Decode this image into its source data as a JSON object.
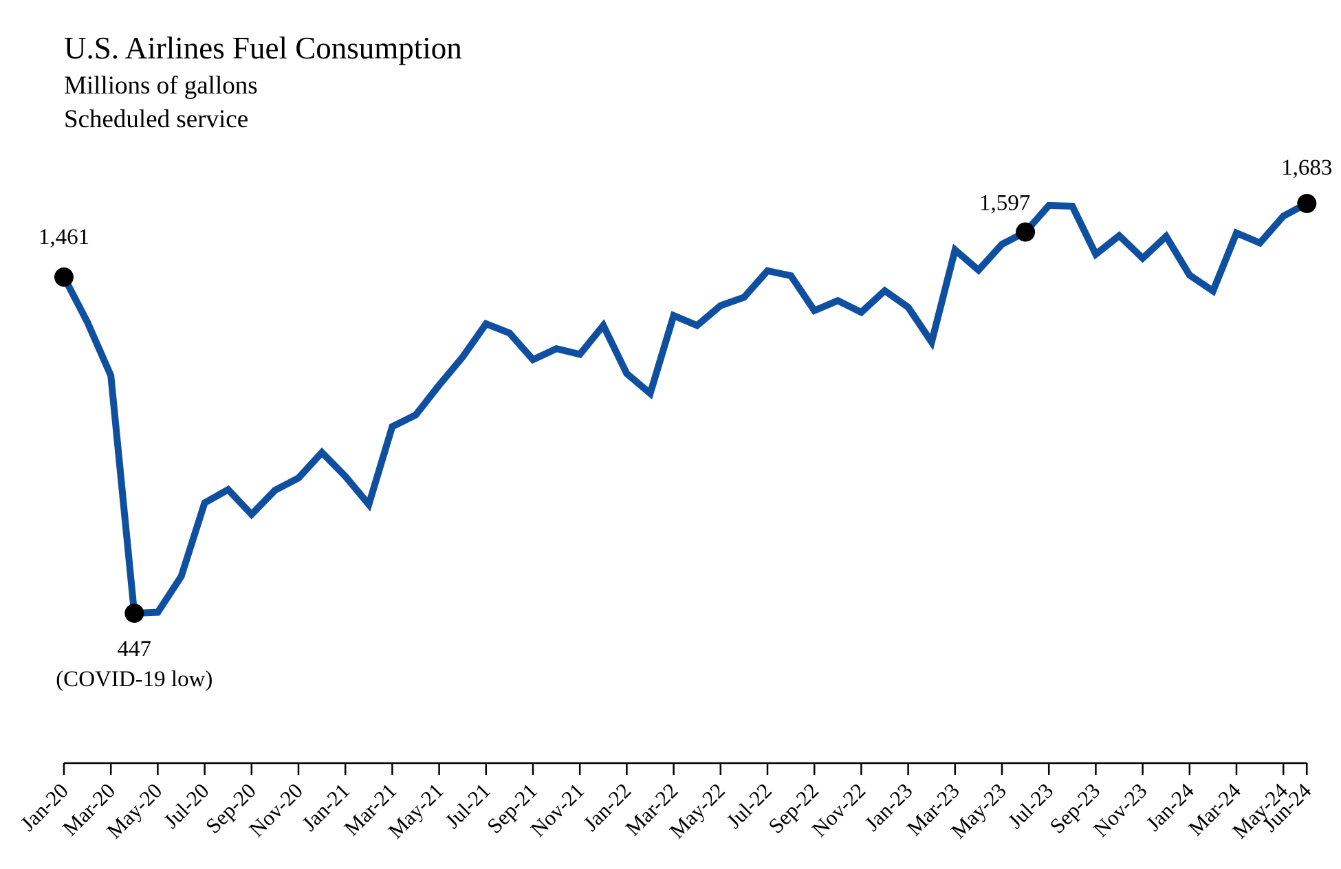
{
  "chart_data": {
    "type": "line",
    "title": "U.S. Airlines Fuel Consumption",
    "subtitle_lines": [
      "Millions of gallons",
      "Scheduled service"
    ],
    "line_color": "#0f4fa0",
    "marker_color": "#000000",
    "x": [
      "Jan-20",
      "Feb-20",
      "Mar-20",
      "Apr-20",
      "May-20",
      "Jun-20",
      "Jul-20",
      "Aug-20",
      "Sep-20",
      "Oct-20",
      "Nov-20",
      "Dec-20",
      "Jan-21",
      "Feb-21",
      "Mar-21",
      "Apr-21",
      "May-21",
      "Jun-21",
      "Jul-21",
      "Aug-21",
      "Sep-21",
      "Oct-21",
      "Nov-21",
      "Dec-21",
      "Jan-22",
      "Feb-22",
      "Mar-22",
      "Apr-22",
      "May-22",
      "Jun-22",
      "Jul-22",
      "Aug-22",
      "Sep-22",
      "Oct-22",
      "Nov-22",
      "Dec-22",
      "Jan-23",
      "Feb-23",
      "Mar-23",
      "Apr-23",
      "May-23",
      "Jun-23",
      "Jul-23",
      "Aug-23",
      "Sep-23",
      "Oct-23",
      "Nov-23",
      "Dec-23",
      "Jan-24",
      "Feb-24",
      "Mar-24",
      "Apr-24",
      "May-24",
      "Jun-24"
    ],
    "series": [
      {
        "values": [
          1461,
          1325,
          1164,
          447,
          450,
          558,
          780,
          820,
          745,
          818,
          855,
          932,
          860,
          775,
          1010,
          1045,
          1135,
          1220,
          1320,
          1292,
          1212,
          1245,
          1228,
          1315,
          1170,
          1110,
          1345,
          1315,
          1375,
          1400,
          1480,
          1465,
          1360,
          1390,
          1355,
          1420,
          1370,
          1265,
          1543,
          1482,
          1560,
          1597,
          1677,
          1675,
          1530,
          1586,
          1518,
          1584,
          1467,
          1419,
          1594,
          1564,
          1645,
          1683
        ]
      }
    ],
    "x_tick_labels": [
      "Jan-20",
      "Mar-20",
      "May-20",
      "Jul-20",
      "Sep-20",
      "Nov-20",
      "Jan-21",
      "Mar-21",
      "May-21",
      "Jul-21",
      "Sep-21",
      "Nov-21",
      "Jan-22",
      "Mar-22",
      "May-22",
      "Jul-22",
      "Sep-22",
      "Nov-22",
      "Jan-23",
      "Mar-23",
      "May-23",
      "Jul-23",
      "Sep-23",
      "Nov-23",
      "Jan-24",
      "Mar-24",
      "May-24",
      "Jun-24"
    ],
    "annotations": [
      {
        "x": "Jan-20",
        "value": 1461,
        "lines": [
          "1,461"
        ]
      },
      {
        "x": "Apr-20",
        "value": 447,
        "lines": [
          "447",
          "(COVID-19 low)"
        ]
      },
      {
        "x": "Jun-23",
        "value": 1597,
        "lines": [
          "1,597"
        ]
      },
      {
        "x": "Jun-24",
        "value": 1683,
        "lines": [
          "1,683"
        ]
      }
    ],
    "grid": false,
    "y_axis_visible": false
  }
}
